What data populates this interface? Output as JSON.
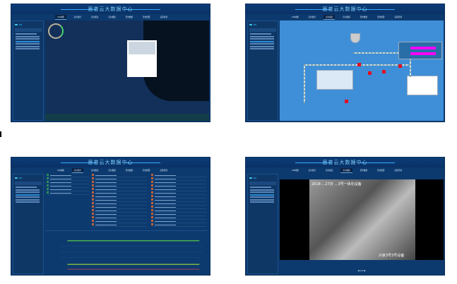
{
  "app_title": "思普云大数据中心",
  "nav": [
    "GIS地图",
    "实时监控",
    "实时报表",
    "实时视频",
    "历史数据",
    "历史报警",
    "远程控制"
  ],
  "colors": {
    "background": "#0d3a6e",
    "accent": "#38c3e8",
    "alarm": "#e01020",
    "highlight": "#ff00ff"
  },
  "video": {
    "overlay_top": "2018-…27日 …3号一体化设备",
    "overlay_bottom": "兴家3号3号设备",
    "page": "1/2"
  }
}
